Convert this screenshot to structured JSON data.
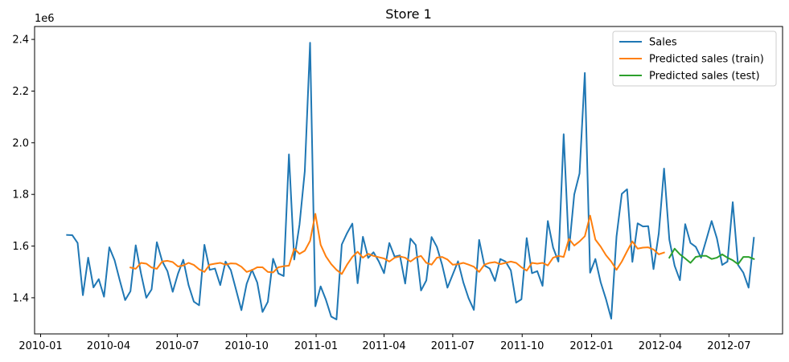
{
  "chart_data": {
    "type": "line",
    "title": "Store 1",
    "xlabel": "",
    "ylabel": "",
    "y_offset_label": "1e6",
    "xlim": [
      "2009-12-24",
      "2012-09-10"
    ],
    "ylim": [
      1.26,
      2.45
    ],
    "x_ticks": [
      {
        "date": "2010-01-01",
        "label": "2010-01"
      },
      {
        "date": "2010-04-01",
        "label": "2010-04"
      },
      {
        "date": "2010-07-01",
        "label": "2010-07"
      },
      {
        "date": "2010-10-01",
        "label": "2010-10"
      },
      {
        "date": "2011-01-01",
        "label": "2011-01"
      },
      {
        "date": "2011-04-01",
        "label": "2011-04"
      },
      {
        "date": "2011-07-01",
        "label": "2011-07"
      },
      {
        "date": "2011-10-01",
        "label": "2011-10"
      },
      {
        "date": "2012-01-01",
        "label": "2012-01"
      },
      {
        "date": "2012-04-01",
        "label": "2012-04"
      },
      {
        "date": "2012-07-01",
        "label": "2012-07"
      }
    ],
    "y_ticks": [
      {
        "value": 1.4,
        "label": "1.4"
      },
      {
        "value": 1.6,
        "label": "1.6"
      },
      {
        "value": 1.8,
        "label": "1.8"
      },
      {
        "value": 2.0,
        "label": "2.0"
      },
      {
        "value": 2.2,
        "label": "2.2"
      },
      {
        "value": 2.4,
        "label": "2.4"
      }
    ],
    "grid": false,
    "legend_position": "top-right",
    "series": [
      {
        "name": "Sales",
        "color": "#1f77b4",
        "x": [
          "2010-02-05",
          "2010-02-12",
          "2010-02-19",
          "2010-02-26",
          "2010-03-05",
          "2010-03-12",
          "2010-03-19",
          "2010-03-26",
          "2010-04-02",
          "2010-04-09",
          "2010-04-16",
          "2010-04-23",
          "2010-04-30",
          "2010-05-07",
          "2010-05-14",
          "2010-05-21",
          "2010-05-28",
          "2010-06-04",
          "2010-06-11",
          "2010-06-18",
          "2010-06-25",
          "2010-07-02",
          "2010-07-09",
          "2010-07-16",
          "2010-07-23",
          "2010-07-30",
          "2010-08-06",
          "2010-08-13",
          "2010-08-20",
          "2010-08-27",
          "2010-09-03",
          "2010-09-10",
          "2010-09-17",
          "2010-09-24",
          "2010-10-01",
          "2010-10-08",
          "2010-10-15",
          "2010-10-22",
          "2010-10-29",
          "2010-11-05",
          "2010-11-12",
          "2010-11-19",
          "2010-11-26",
          "2010-12-03",
          "2010-12-10",
          "2010-12-17",
          "2010-12-24",
          "2010-12-31",
          "2011-01-07",
          "2011-01-14",
          "2011-01-21",
          "2011-01-28",
          "2011-02-04",
          "2011-02-11",
          "2011-02-18",
          "2011-02-25",
          "2011-03-04",
          "2011-03-11",
          "2011-03-18",
          "2011-03-25",
          "2011-04-01",
          "2011-04-08",
          "2011-04-15",
          "2011-04-22",
          "2011-04-29",
          "2011-05-06",
          "2011-05-13",
          "2011-05-20",
          "2011-05-27",
          "2011-06-03",
          "2011-06-10",
          "2011-06-17",
          "2011-06-24",
          "2011-07-01",
          "2011-07-08",
          "2011-07-15",
          "2011-07-22",
          "2011-07-29",
          "2011-08-05",
          "2011-08-12",
          "2011-08-19",
          "2011-08-26",
          "2011-09-02",
          "2011-09-09",
          "2011-09-16",
          "2011-09-23",
          "2011-09-30",
          "2011-10-07",
          "2011-10-14",
          "2011-10-21",
          "2011-10-28",
          "2011-11-04",
          "2011-11-11",
          "2011-11-18",
          "2011-11-25",
          "2011-12-02",
          "2011-12-09",
          "2011-12-16",
          "2011-12-23",
          "2011-12-30",
          "2012-01-06",
          "2012-01-13",
          "2012-01-20",
          "2012-01-27",
          "2012-02-03",
          "2012-02-10",
          "2012-02-17",
          "2012-02-24",
          "2012-03-02",
          "2012-03-09",
          "2012-03-16",
          "2012-03-23",
          "2012-03-30",
          "2012-04-06",
          "2012-04-13",
          "2012-04-20",
          "2012-04-27",
          "2012-05-04",
          "2012-05-11",
          "2012-05-18",
          "2012-05-25",
          "2012-06-01",
          "2012-06-08",
          "2012-06-15",
          "2012-06-22",
          "2012-06-29",
          "2012-07-06",
          "2012-07-13",
          "2012-07-20",
          "2012-07-27",
          "2012-08-03"
        ],
        "values": [
          1.643,
          1.642,
          1.612,
          1.41,
          1.555,
          1.44,
          1.472,
          1.404,
          1.595,
          1.545,
          1.466,
          1.391,
          1.425,
          1.603,
          1.494,
          1.4,
          1.432,
          1.615,
          1.542,
          1.503,
          1.423,
          1.493,
          1.547,
          1.449,
          1.385,
          1.371,
          1.605,
          1.508,
          1.513,
          1.449,
          1.54,
          1.507,
          1.43,
          1.352,
          1.454,
          1.508,
          1.459,
          1.345,
          1.384,
          1.551,
          1.494,
          1.484,
          1.955,
          1.548,
          1.683,
          1.89,
          2.387,
          1.367,
          1.444,
          1.392,
          1.327,
          1.316,
          1.606,
          1.65,
          1.687,
          1.456,
          1.636,
          1.554,
          1.576,
          1.541,
          1.495,
          1.612,
          1.559,
          1.564,
          1.455,
          1.629,
          1.604,
          1.428,
          1.467,
          1.635,
          1.597,
          1.527,
          1.439,
          1.49,
          1.541,
          1.46,
          1.398,
          1.353,
          1.624,
          1.525,
          1.513,
          1.465,
          1.55,
          1.54,
          1.506,
          1.381,
          1.394,
          1.631,
          1.495,
          1.503,
          1.446,
          1.697,
          1.594,
          1.54,
          2.033,
          1.584,
          1.8,
          1.881,
          2.27,
          1.497,
          1.55,
          1.46,
          1.395,
          1.319,
          1.637,
          1.802,
          1.82,
          1.539,
          1.688,
          1.676,
          1.677,
          1.511,
          1.649,
          1.9,
          1.625,
          1.524,
          1.468,
          1.685,
          1.612,
          1.597,
          1.555,
          1.625,
          1.697,
          1.63,
          1.527,
          1.54,
          1.77,
          1.527,
          1.497,
          1.439,
          1.632
        ]
      },
      {
        "name": "Predicted sales (train)",
        "color": "#ff7f0e",
        "x": [
          "2010-04-30",
          "2010-05-07",
          "2010-05-14",
          "2010-05-21",
          "2010-05-28",
          "2010-06-04",
          "2010-06-11",
          "2010-06-18",
          "2010-06-25",
          "2010-07-02",
          "2010-07-09",
          "2010-07-16",
          "2010-07-23",
          "2010-07-30",
          "2010-08-06",
          "2010-08-13",
          "2010-08-20",
          "2010-08-27",
          "2010-09-03",
          "2010-09-10",
          "2010-09-17",
          "2010-09-24",
          "2010-10-01",
          "2010-10-08",
          "2010-10-15",
          "2010-10-22",
          "2010-10-29",
          "2010-11-05",
          "2010-11-12",
          "2010-11-19",
          "2010-11-26",
          "2010-12-03",
          "2010-12-10",
          "2010-12-17",
          "2010-12-24",
          "2010-12-31",
          "2011-01-07",
          "2011-01-14",
          "2011-01-21",
          "2011-01-28",
          "2011-02-04",
          "2011-02-11",
          "2011-02-18",
          "2011-02-25",
          "2011-03-04",
          "2011-03-11",
          "2011-03-18",
          "2011-03-25",
          "2011-04-01",
          "2011-04-08",
          "2011-04-15",
          "2011-04-22",
          "2011-04-29",
          "2011-05-06",
          "2011-05-13",
          "2011-05-20",
          "2011-05-27",
          "2011-06-03",
          "2011-06-10",
          "2011-06-17",
          "2011-06-24",
          "2011-07-01",
          "2011-07-08",
          "2011-07-15",
          "2011-07-22",
          "2011-07-29",
          "2011-08-05",
          "2011-08-12",
          "2011-08-19",
          "2011-08-26",
          "2011-09-02",
          "2011-09-09",
          "2011-09-16",
          "2011-09-23",
          "2011-09-30",
          "2011-10-07",
          "2011-10-14",
          "2011-10-21",
          "2011-10-28",
          "2011-11-04",
          "2011-11-11",
          "2011-11-18",
          "2011-11-25",
          "2011-12-02",
          "2011-12-09",
          "2011-12-16",
          "2011-12-23",
          "2011-12-30",
          "2012-01-06",
          "2012-01-13",
          "2012-01-20",
          "2012-01-27",
          "2012-02-03",
          "2012-02-10",
          "2012-02-17",
          "2012-02-24",
          "2012-03-02",
          "2012-03-09",
          "2012-03-16",
          "2012-03-23",
          "2012-03-30",
          "2012-04-06"
        ],
        "values": [
          1.517,
          1.512,
          1.535,
          1.532,
          1.517,
          1.512,
          1.54,
          1.543,
          1.538,
          1.521,
          1.525,
          1.535,
          1.527,
          1.51,
          1.5,
          1.528,
          1.532,
          1.535,
          1.528,
          1.533,
          1.532,
          1.52,
          1.5,
          1.507,
          1.518,
          1.518,
          1.5,
          1.498,
          1.518,
          1.522,
          1.524,
          1.59,
          1.57,
          1.582,
          1.62,
          1.725,
          1.605,
          1.56,
          1.53,
          1.508,
          1.492,
          1.528,
          1.558,
          1.578,
          1.555,
          1.57,
          1.562,
          1.557,
          1.552,
          1.54,
          1.555,
          1.56,
          1.555,
          1.54,
          1.555,
          1.562,
          1.535,
          1.528,
          1.555,
          1.558,
          1.548,
          1.528,
          1.53,
          1.535,
          1.528,
          1.52,
          1.5,
          1.528,
          1.535,
          1.538,
          1.53,
          1.535,
          1.54,
          1.535,
          1.518,
          1.505,
          1.535,
          1.532,
          1.535,
          1.525,
          1.555,
          1.562,
          1.558,
          1.628,
          1.602,
          1.618,
          1.638,
          1.718,
          1.625,
          1.598,
          1.565,
          1.54,
          1.508,
          1.54,
          1.58,
          1.618,
          1.59,
          1.594,
          1.595,
          1.587,
          1.568,
          1.575
        ]
      },
      {
        "name": "Predicted sales (test)",
        "color": "#2ca02c",
        "x": [
          "2012-04-13",
          "2012-04-20",
          "2012-04-27",
          "2012-05-04",
          "2012-05-11",
          "2012-05-18",
          "2012-05-25",
          "2012-06-01",
          "2012-06-08",
          "2012-06-15",
          "2012-06-22",
          "2012-06-29",
          "2012-07-06",
          "2012-07-13",
          "2012-07-20",
          "2012-07-27",
          "2012-08-03"
        ],
        "values": [
          1.555,
          1.59,
          1.568,
          1.552,
          1.535,
          1.558,
          1.562,
          1.562,
          1.55,
          1.555,
          1.568,
          1.555,
          1.545,
          1.53,
          1.558,
          1.558,
          1.55
        ]
      }
    ]
  }
}
